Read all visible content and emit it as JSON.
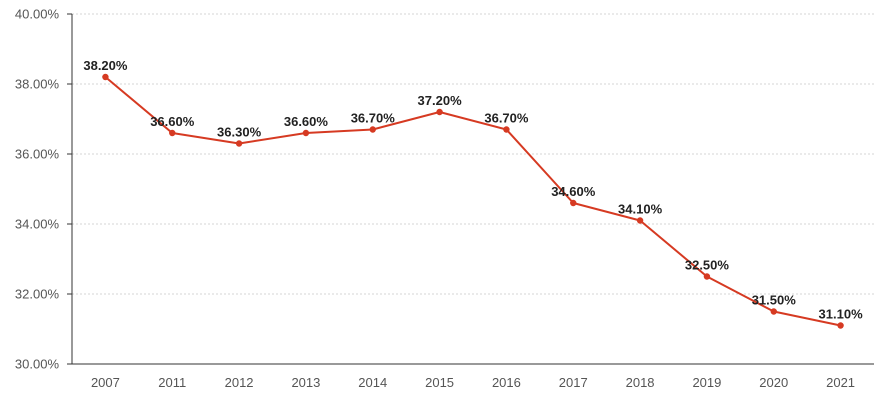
{
  "chart_data": {
    "type": "line",
    "title": "",
    "xlabel": "",
    "ylabel": "",
    "categories": [
      "2007",
      "2011",
      "2012",
      "2013",
      "2014",
      "2015",
      "2016",
      "2017",
      "2018",
      "2019",
      "2020",
      "2021"
    ],
    "values": [
      38.2,
      36.6,
      36.3,
      36.6,
      36.7,
      37.2,
      36.7,
      34.6,
      34.1,
      32.5,
      31.5,
      31.1
    ],
    "data_labels": [
      "38.20%",
      "36.60%",
      "36.30%",
      "36.60%",
      "36.70%",
      "37.20%",
      "36.70%",
      "34.60%",
      "34.10%",
      "32.50%",
      "31.50%",
      "31.10%"
    ],
    "ylim": [
      30,
      40
    ],
    "yticks": [
      30,
      32,
      34,
      36,
      38,
      40
    ],
    "ytick_labels": [
      "30.00%",
      "32.00%",
      "34.00%",
      "36.00%",
      "38.00%",
      "40.00%"
    ],
    "grid": true,
    "colors": {
      "line": "#d63a22",
      "marker": "#d63a22",
      "label_halo": "#f3b8ad",
      "grid": "#d6d6d6"
    }
  }
}
